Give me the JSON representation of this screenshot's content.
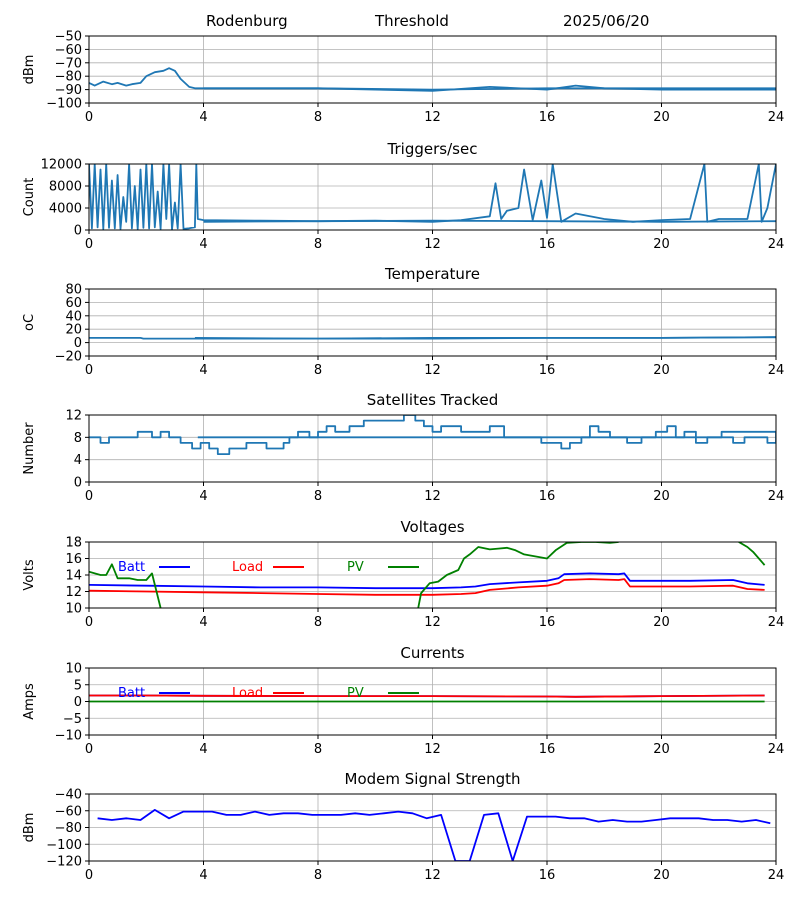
{
  "header": {
    "station": "Rodenburg",
    "mode": "Threshold",
    "date": "2025/06/20"
  },
  "chart_data": [
    {
      "type": "line",
      "title": "",
      "ylabel": "dBm",
      "xlim": [
        0,
        24
      ],
      "ylim": [
        -100,
        -50
      ],
      "xticks": [
        0,
        4,
        8,
        12,
        16,
        20,
        24
      ],
      "yticks": [
        -100,
        -90,
        -80,
        -70,
        -60,
        -50
      ],
      "grid": true,
      "series": [
        {
          "color": "#1f77b4",
          "x": [
            0,
            0.2,
            0.5,
            0.8,
            1.0,
            1.3,
            1.5,
            1.8,
            2.0,
            2.3,
            2.6,
            2.8,
            3.0,
            3.2,
            3.5,
            3.7,
            4,
            6,
            8,
            10,
            12,
            14,
            16,
            17,
            18,
            20,
            22,
            24
          ],
          "y": [
            -85,
            -87,
            -84,
            -86,
            -85,
            -87,
            -86,
            -85,
            -80,
            -77,
            -76,
            -74,
            -76,
            -82,
            -88,
            -89,
            -89,
            -89,
            -89,
            -90,
            -91,
            -88,
            -90,
            -87,
            -89,
            -90,
            -90,
            -90
          ]
        },
        {
          "color": "#1f77b4",
          "x": [
            4,
            8,
            12,
            16,
            20,
            24
          ],
          "y": [
            -89,
            -89,
            -90,
            -89,
            -89,
            -89
          ]
        }
      ]
    },
    {
      "type": "line",
      "title": "Triggers/sec",
      "ylabel": "Count",
      "xlim": [
        0,
        24
      ],
      "ylim": [
        0,
        12000
      ],
      "xticks": [
        0,
        4,
        8,
        12,
        16,
        20,
        24
      ],
      "yticks": [
        0,
        4000,
        8000,
        12000
      ],
      "grid": true,
      "series": [
        {
          "color": "#1f77b4",
          "x": [
            0,
            0.1,
            0.2,
            0.3,
            0.4,
            0.5,
            0.6,
            0.7,
            0.8,
            0.9,
            1.0,
            1.1,
            1.2,
            1.3,
            1.4,
            1.5,
            1.6,
            1.7,
            1.8,
            1.9,
            2.0,
            2.1,
            2.2,
            2.3,
            2.4,
            2.5,
            2.6,
            2.7,
            2.8,
            2.9,
            3.0,
            3.1,
            3.2,
            3.3,
            3.5,
            3.7,
            3.75,
            3.8,
            4,
            6,
            8,
            10,
            12,
            13,
            14,
            14.2,
            14.4,
            14.6,
            15,
            15.2,
            15.5,
            15.8,
            16,
            16.2,
            16.5,
            17,
            18,
            19,
            20,
            21,
            21.5,
            21.6,
            22,
            23,
            23.4,
            23.5,
            23.7,
            24
          ],
          "y": [
            12000,
            300,
            12000,
            500,
            11000,
            200,
            12000,
            400,
            9000,
            300,
            10000,
            200,
            6000,
            1500,
            12000,
            300,
            8000,
            200,
            11000,
            400,
            12000,
            300,
            12000,
            500,
            7000,
            200,
            12000,
            2000,
            12000,
            100,
            5000,
            300,
            12000,
            200,
            300,
            500,
            12000,
            2000,
            1800,
            1700,
            1600,
            1700,
            1500,
            1800,
            2500,
            8500,
            2000,
            3500,
            4000,
            11000,
            1800,
            9000,
            2200,
            12000,
            1500,
            3000,
            2000,
            1500,
            1800,
            2000,
            12000,
            1500,
            2000,
            2000,
            12000,
            1500,
            4000,
            12000
          ]
        },
        {
          "color": "#1f77b4",
          "x": [
            4,
            8,
            12,
            16,
            20,
            24
          ],
          "y": [
            1500,
            1600,
            1700,
            1600,
            1500,
            1600
          ]
        }
      ]
    },
    {
      "type": "line",
      "title": "Temperature",
      "ylabel": "oC",
      "xlim": [
        0,
        24
      ],
      "ylim": [
        -20,
        80
      ],
      "xticks": [
        0,
        4,
        8,
        12,
        16,
        20,
        24
      ],
      "yticks": [
        -20,
        0,
        20,
        40,
        60,
        80
      ],
      "grid": true,
      "series": [
        {
          "color": "#1f77b4",
          "x": [
            0,
            1.8,
            1.9,
            4,
            8,
            12,
            16,
            20,
            24
          ],
          "y": [
            7,
            7,
            6,
            6,
            6,
            6,
            7,
            7,
            8
          ]
        },
        {
          "color": "#1f77b4",
          "x": [
            3.7,
            8,
            12,
            16,
            20,
            24
          ],
          "y": [
            7,
            6,
            7,
            7,
            7,
            8
          ]
        }
      ]
    },
    {
      "type": "line",
      "title": "Satellites Tracked",
      "ylabel": "Number",
      "xlim": [
        0,
        24
      ],
      "ylim": [
        0,
        12
      ],
      "xticks": [
        0,
        4,
        8,
        12,
        16,
        20,
        24
      ],
      "yticks": [
        0,
        4,
        8,
        12
      ],
      "grid": true,
      "step": true,
      "series": [
        {
          "color": "#1f77b4",
          "x": [
            0,
            0.4,
            0.7,
            1.0,
            1.7,
            2.2,
            2.5,
            2.8,
            3.2,
            3.6,
            3.9,
            4.2,
            4.5,
            4.9,
            5.5,
            5.9,
            6.2,
            6.8,
            7.0,
            7.3,
            7.7,
            8.0,
            8.3,
            8.6,
            9.1,
            9.6,
            10.1,
            11.0,
            11.4,
            11.7,
            12.0,
            12.3,
            13.0,
            13.6,
            14.0,
            14.5,
            15.0,
            15.8,
            16.5,
            16.8,
            17.2,
            17.5,
            17.8,
            18.2,
            18.8,
            19.3,
            19.8,
            20.2,
            20.5,
            20.8,
            21.2,
            21.6,
            22.0,
            22.5,
            22.9,
            23.3,
            23.7,
            24
          ],
          "y": [
            8,
            7,
            8,
            8,
            9,
            8,
            9,
            8,
            7,
            6,
            7,
            6,
            5,
            6,
            7,
            7,
            6,
            7,
            8,
            9,
            8,
            9,
            10,
            9,
            10,
            11,
            11,
            12,
            11,
            10,
            9,
            10,
            9,
            9,
            10,
            8,
            8,
            7,
            6,
            7,
            8,
            10,
            9,
            8,
            7,
            8,
            9,
            10,
            8,
            9,
            7,
            8,
            8,
            7,
            8,
            8,
            7,
            9
          ]
        },
        {
          "color": "#1f77b4",
          "x": [
            3.8,
            8,
            12,
            16,
            20,
            22,
            22.1,
            24
          ],
          "y": [
            8,
            8,
            8,
            8,
            8,
            8,
            9,
            9
          ]
        }
      ]
    },
    {
      "type": "line",
      "title": "Voltages",
      "ylabel": "Volts",
      "xlim": [
        0,
        24
      ],
      "ylim": [
        10,
        18
      ],
      "xticks": [
        0,
        4,
        8,
        12,
        16,
        20,
        24
      ],
      "yticks": [
        10,
        12,
        14,
        16,
        18
      ],
      "grid": true,
      "legend": "top-left",
      "series": [
        {
          "name": "Batt",
          "color": "#0000ff",
          "x": [
            0,
            2,
            4,
            6,
            8,
            10,
            12,
            13,
            13.5,
            14,
            15,
            16,
            16.4,
            16.6,
            17.5,
            18.5,
            18.7,
            18.9,
            19.5,
            21,
            22.5,
            23,
            23.6
          ],
          "y": [
            12.8,
            12.7,
            12.6,
            12.5,
            12.5,
            12.4,
            12.4,
            12.5,
            12.6,
            12.9,
            13.1,
            13.3,
            13.6,
            14.1,
            14.2,
            14.1,
            14.2,
            13.3,
            13.3,
            13.3,
            13.4,
            13.0,
            12.8
          ]
        },
        {
          "name": "Load",
          "color": "#ff0000",
          "x": [
            0,
            2,
            4,
            6,
            8,
            10,
            12,
            13,
            13.5,
            14,
            15,
            16,
            16.4,
            16.6,
            17.5,
            18.5,
            18.7,
            18.9,
            19.5,
            21,
            22.5,
            23,
            23.6
          ],
          "y": [
            12.1,
            12.0,
            11.9,
            11.8,
            11.7,
            11.6,
            11.6,
            11.7,
            11.8,
            12.2,
            12.5,
            12.7,
            13.0,
            13.4,
            13.5,
            13.4,
            13.5,
            12.6,
            12.6,
            12.6,
            12.7,
            12.3,
            12.2
          ]
        },
        {
          "name": "PV",
          "color": "#008000",
          "x": [
            0,
            0.4,
            0.6,
            0.8,
            1.0,
            1.4,
            1.7,
            2.0,
            2.2,
            2.5
          ],
          "y": [
            14.4,
            14.0,
            14.0,
            15.3,
            13.6,
            13.6,
            13.4,
            13.4,
            14.2,
            10.0
          ]
        },
        {
          "name": "PV",
          "color": "#008000",
          "x": [
            11.5,
            11.6,
            11.9,
            12.2,
            12.5,
            12.9,
            13.1,
            13.3,
            13.6,
            14.0,
            14.3,
            14.6,
            14.9,
            15.2,
            16.0,
            16.3,
            16.7,
            17.2,
            17.7,
            18.2,
            18.5
          ],
          "y": [
            10.0,
            11.8,
            13.0,
            13.2,
            14.0,
            14.6,
            16.0,
            16.5,
            17.4,
            17.1,
            17.2,
            17.3,
            17.0,
            16.5,
            16.0,
            17.0,
            17.9,
            18.0,
            18.0,
            17.9,
            18.0
          ]
        },
        {
          "name": "PV",
          "color": "#008000",
          "x": [
            22.7,
            23.0,
            23.2,
            23.6
          ],
          "y": [
            18.0,
            17.4,
            16.8,
            15.2
          ]
        }
      ]
    },
    {
      "type": "line",
      "title": "Currents",
      "ylabel": "Amps",
      "xlim": [
        0,
        24
      ],
      "ylim": [
        -10,
        10
      ],
      "xticks": [
        0,
        4,
        8,
        12,
        16,
        20,
        24
      ],
      "yticks": [
        -10,
        -5,
        0,
        5,
        10
      ],
      "grid": true,
      "legend": "top-left",
      "series": [
        {
          "name": "Batt",
          "color": "#0000ff",
          "x": [
            0,
            2,
            4,
            8,
            12,
            16,
            17,
            20,
            23.6
          ],
          "y": [
            1.8,
            1.8,
            1.7,
            1.6,
            1.6,
            1.5,
            1.4,
            1.6,
            1.8
          ]
        },
        {
          "name": "Load",
          "color": "#ff0000",
          "x": [
            0,
            2,
            4,
            8,
            12,
            16,
            17,
            20,
            23.6
          ],
          "y": [
            1.8,
            1.8,
            1.7,
            1.6,
            1.6,
            1.5,
            1.4,
            1.6,
            1.8
          ]
        },
        {
          "name": "PV",
          "color": "#008000",
          "x": [
            0,
            23.6
          ],
          "y": [
            0,
            0
          ]
        }
      ]
    },
    {
      "type": "line",
      "title": "Modem Signal Strength",
      "ylabel": "dBm",
      "xlim": [
        0,
        24
      ],
      "ylim": [
        -120,
        -40
      ],
      "xticks": [
        0,
        4,
        8,
        12,
        16,
        20,
        24
      ],
      "yticks": [
        -120,
        -100,
        -80,
        -60,
        -40
      ],
      "grid": true,
      "series": [
        {
          "color": "#0000ff",
          "x": [
            0.3,
            0.8,
            1.3,
            1.8,
            2.3,
            2.8,
            3.3,
            3.8,
            4.3,
            4.8,
            5.3,
            5.8,
            6.3,
            6.8,
            7.3,
            7.8,
            8.3,
            8.8,
            9.3,
            9.8,
            10.3,
            10.8,
            11.3,
            11.8,
            12.3,
            12.8,
            13.3,
            13.8,
            14.3,
            14.8,
            15.3,
            15.8,
            16.3,
            16.8,
            17.3,
            17.8,
            18.3,
            18.8,
            19.3,
            19.8,
            20.3,
            20.8,
            21.3,
            21.8,
            22.3,
            22.8,
            23.3,
            23.8
          ],
          "y": [
            -69,
            -71,
            -69,
            -71,
            -59,
            -69,
            -61,
            -61,
            -61,
            -65,
            -65,
            -61,
            -65,
            -63,
            -63,
            -65,
            -65,
            -65,
            -63,
            -65,
            -63,
            -61,
            -63,
            -69,
            -65,
            -120,
            -120,
            -65,
            -63,
            -120,
            -67,
            -67,
            -67,
            -69,
            -69,
            -73,
            -71,
            -73,
            -73,
            -71,
            -69,
            -69,
            -69,
            -71,
            -71,
            -73,
            -71,
            -75
          ]
        }
      ]
    }
  ]
}
